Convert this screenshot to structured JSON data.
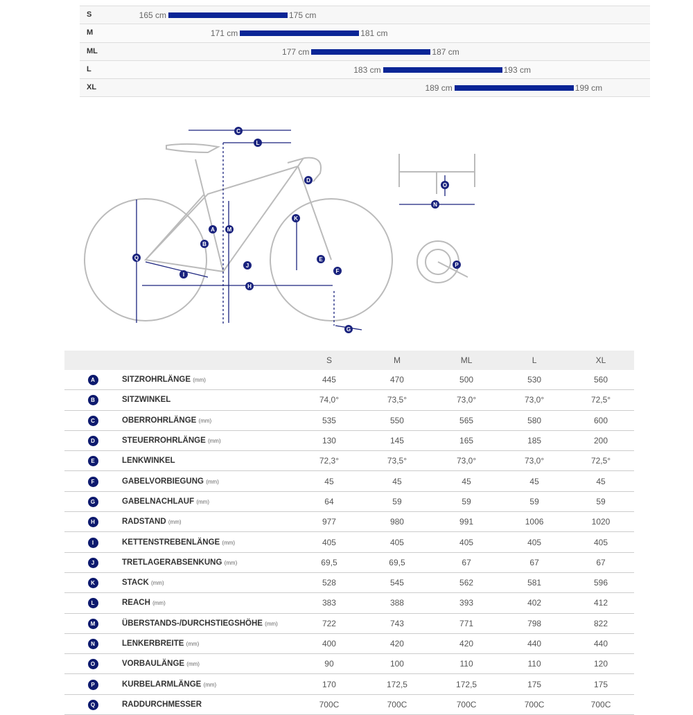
{
  "size_chart": {
    "unit": "cm",
    "rows": [
      {
        "size": "S",
        "min": 165,
        "max": 175,
        "min_label": "165 cm",
        "max_label": "175 cm"
      },
      {
        "size": "M",
        "min": 171,
        "max": 181,
        "min_label": "171 cm",
        "max_label": "181 cm"
      },
      {
        "size": "ML",
        "min": 177,
        "max": 187,
        "min_label": "177 cm",
        "max_label": "187 cm"
      },
      {
        "size": "L",
        "min": 183,
        "max": 193,
        "min_label": "183 cm",
        "max_label": "193 cm"
      },
      {
        "size": "XL",
        "min": 189,
        "max": 199,
        "min_label": "189 cm",
        "max_label": "199 cm"
      }
    ],
    "bar_color": "#0a2596"
  },
  "diagram": {
    "letters": [
      "A",
      "B",
      "C",
      "D",
      "E",
      "F",
      "G",
      "H",
      "I",
      "J",
      "K",
      "L",
      "M",
      "N",
      "O",
      "P",
      "Q"
    ],
    "accent": "#1a237e"
  },
  "table": {
    "headers": [
      "S",
      "M",
      "ML",
      "L",
      "XL"
    ],
    "rows": [
      {
        "key": "A",
        "label": "SITZROHRLÄNGE",
        "unit": "(mm)",
        "values": [
          "445",
          "470",
          "500",
          "530",
          "560"
        ]
      },
      {
        "key": "B",
        "label": "SITZWINKEL",
        "unit": "",
        "values": [
          "74,0°",
          "73,5°",
          "73,0°",
          "73,0°",
          "72,5°"
        ]
      },
      {
        "key": "C",
        "label": "OBERROHRLÄNGE",
        "unit": "(mm)",
        "values": [
          "535",
          "550",
          "565",
          "580",
          "600"
        ]
      },
      {
        "key": "D",
        "label": "STEUERROHRLÄNGE",
        "unit": "(mm)",
        "values": [
          "130",
          "145",
          "165",
          "185",
          "200"
        ]
      },
      {
        "key": "E",
        "label": "LENKWINKEL",
        "unit": "",
        "values": [
          "72,3°",
          "73,5°",
          "73,0°",
          "73,0°",
          "72,5°"
        ]
      },
      {
        "key": "F",
        "label": "GABELVORBIEGUNG",
        "unit": "(mm)",
        "values": [
          "45",
          "45",
          "45",
          "45",
          "45"
        ]
      },
      {
        "key": "G",
        "label": "GABELNACHLAUF",
        "unit": "(mm)",
        "values": [
          "64",
          "59",
          "59",
          "59",
          "59"
        ]
      },
      {
        "key": "H",
        "label": "RADSTAND",
        "unit": "(mm)",
        "values": [
          "977",
          "980",
          "991",
          "1006",
          "1020"
        ]
      },
      {
        "key": "I",
        "label": "KETTENSTREBENLÄNGE",
        "unit": "(mm)",
        "values": [
          "405",
          "405",
          "405",
          "405",
          "405"
        ]
      },
      {
        "key": "J",
        "label": "TRETLAGERABSENKUNG",
        "unit": "(mm)",
        "values": [
          "69,5",
          "69,5",
          "67",
          "67",
          "67"
        ]
      },
      {
        "key": "K",
        "label": "STACK",
        "unit": "(mm)",
        "values": [
          "528",
          "545",
          "562",
          "581",
          "596"
        ]
      },
      {
        "key": "L",
        "label": "REACH",
        "unit": "(mm)",
        "values": [
          "383",
          "388",
          "393",
          "402",
          "412"
        ]
      },
      {
        "key": "M",
        "label": "ÜBERSTANDS-/DURCHSTIEGSHÖHE",
        "unit": "(mm)",
        "values": [
          "722",
          "743",
          "771",
          "798",
          "822"
        ]
      },
      {
        "key": "N",
        "label": "LENKERBREITE",
        "unit": "(mm)",
        "values": [
          "400",
          "420",
          "420",
          "440",
          "440"
        ]
      },
      {
        "key": "O",
        "label": "VORBAULÄNGE",
        "unit": "(mm)",
        "values": [
          "90",
          "100",
          "110",
          "110",
          "120"
        ]
      },
      {
        "key": "P",
        "label": "KURBELARMLÄNGE",
        "unit": "(mm)",
        "values": [
          "170",
          "172,5",
          "172,5",
          "175",
          "175"
        ]
      },
      {
        "key": "Q",
        "label": "RADDURCHMESSER",
        "unit": "",
        "values": [
          "700C",
          "700C",
          "700C",
          "700C",
          "700C"
        ]
      }
    ]
  }
}
